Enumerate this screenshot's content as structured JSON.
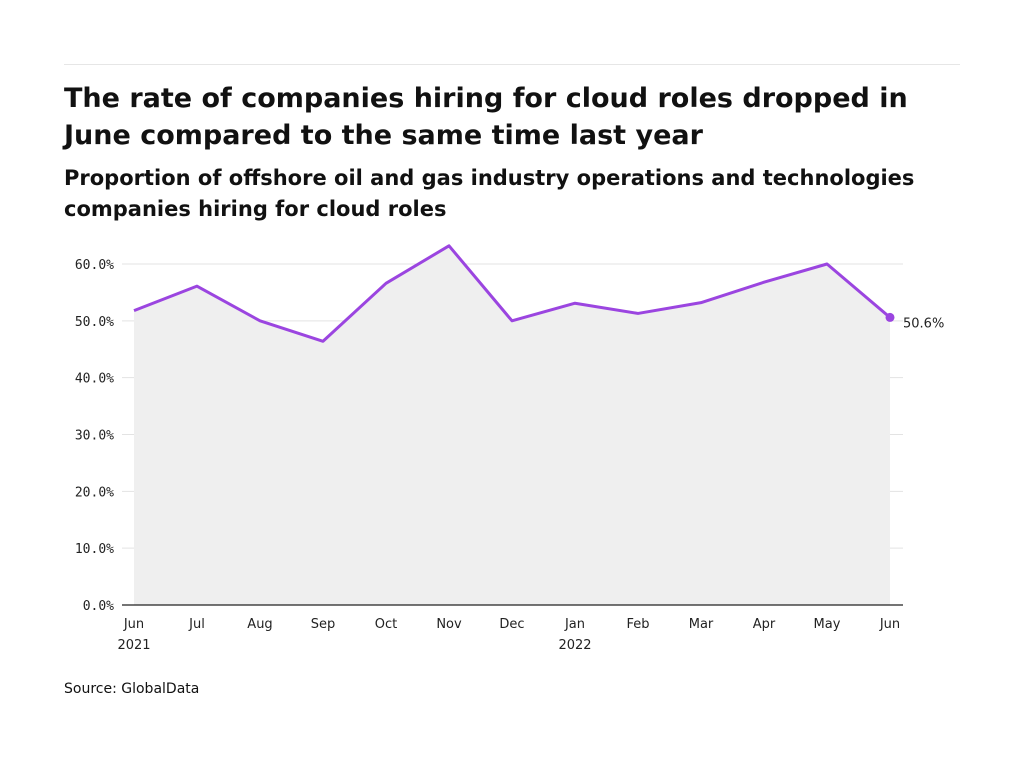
{
  "header": {
    "title": "The rate of companies hiring for cloud roles dropped in June compared to the same time last year",
    "subtitle": "Proportion of offshore oil and gas industry operations and technologies companies hiring for cloud roles"
  },
  "footer": {
    "source": "Source: GlobalData"
  },
  "colors": {
    "line": "#9b45e0",
    "area": "#efefef",
    "grid": "#e3e3e3",
    "axis": "#222222"
  },
  "chart_data": {
    "type": "area",
    "title": "The rate of companies hiring for cloud roles dropped in June compared to the same time last year",
    "subtitle": "Proportion of offshore oil and gas industry operations and technologies companies hiring for cloud roles",
    "xlabel": "",
    "ylabel": "",
    "categories": [
      "Jun",
      "Jul",
      "Aug",
      "Sep",
      "Oct",
      "Nov",
      "Dec",
      "Jan",
      "Feb",
      "Mar",
      "Apr",
      "May",
      "Jun"
    ],
    "year_labels": [
      "2021",
      "",
      "",
      "",
      "",
      "",
      "",
      "2022",
      "",
      "",
      "",
      "",
      ""
    ],
    "series": [
      {
        "values": [
          51.8,
          56.1,
          50.0,
          46.4,
          56.6,
          63.2,
          50.0,
          53.1,
          51.3,
          53.2,
          56.8,
          60.0,
          50.6
        ]
      }
    ],
    "y_ticks": [
      "0.0%",
      "10.0%",
      "20.0%",
      "30.0%",
      "40.0%",
      "50.0%",
      "60.0%"
    ],
    "ylim": [
      0,
      60
    ],
    "end_label": "50.6%",
    "grid": true,
    "legend": "none"
  }
}
